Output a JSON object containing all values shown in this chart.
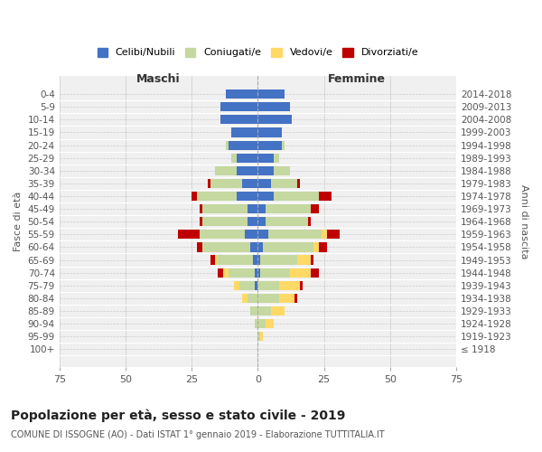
{
  "age_groups": [
    "100+",
    "95-99",
    "90-94",
    "85-89",
    "80-84",
    "75-79",
    "70-74",
    "65-69",
    "60-64",
    "55-59",
    "50-54",
    "45-49",
    "40-44",
    "35-39",
    "30-34",
    "25-29",
    "20-24",
    "15-19",
    "10-14",
    "5-9",
    "0-4"
  ],
  "birth_years": [
    "≤ 1918",
    "1919-1923",
    "1924-1928",
    "1929-1933",
    "1934-1938",
    "1939-1943",
    "1944-1948",
    "1949-1953",
    "1954-1958",
    "1959-1963",
    "1964-1968",
    "1969-1973",
    "1974-1978",
    "1979-1983",
    "1984-1988",
    "1989-1993",
    "1994-1998",
    "1999-2003",
    "2004-2008",
    "2009-2013",
    "2014-2018"
  ],
  "males": {
    "celibi": [
      0,
      0,
      0,
      0,
      0,
      1,
      1,
      2,
      3,
      5,
      4,
      4,
      8,
      6,
      8,
      8,
      11,
      10,
      14,
      14,
      12
    ],
    "coniugati": [
      0,
      0,
      1,
      3,
      4,
      6,
      10,
      13,
      18,
      17,
      17,
      17,
      15,
      12,
      8,
      2,
      1,
      0,
      0,
      0,
      0
    ],
    "vedovi": [
      0,
      0,
      0,
      0,
      2,
      2,
      2,
      1,
      0,
      0,
      0,
      0,
      0,
      0,
      0,
      0,
      0,
      0,
      0,
      0,
      0
    ],
    "divorziati": [
      0,
      0,
      0,
      0,
      0,
      0,
      2,
      2,
      2,
      8,
      1,
      1,
      2,
      1,
      0,
      0,
      0,
      0,
      0,
      0,
      0
    ]
  },
  "females": {
    "nubili": [
      0,
      0,
      0,
      0,
      0,
      0,
      1,
      1,
      2,
      4,
      3,
      3,
      6,
      5,
      6,
      6,
      9,
      9,
      13,
      12,
      10
    ],
    "coniugate": [
      0,
      1,
      3,
      5,
      8,
      8,
      11,
      14,
      19,
      20,
      16,
      17,
      17,
      10,
      6,
      2,
      1,
      0,
      0,
      0,
      0
    ],
    "vedove": [
      0,
      1,
      3,
      5,
      6,
      8,
      8,
      5,
      2,
      2,
      0,
      0,
      0,
      0,
      0,
      0,
      0,
      0,
      0,
      0,
      0
    ],
    "divorziate": [
      0,
      0,
      0,
      0,
      1,
      1,
      3,
      1,
      3,
      5,
      1,
      3,
      5,
      1,
      0,
      0,
      0,
      0,
      0,
      0,
      0
    ]
  },
  "colors": {
    "celibi": "#4472c4",
    "coniugati": "#c5d8a0",
    "vedovi": "#ffd966",
    "divorziati": "#c00000"
  },
  "legend_labels": [
    "Celibi/Nubili",
    "Coniugati/e",
    "Vedovi/e",
    "Divorziati/e"
  ],
  "title": "Popolazione per età, sesso e stato civile - 2019",
  "subtitle": "COMUNE DI ISSOGNE (AO) - Dati ISTAT 1° gennaio 2019 - Elaborazione TUTTITALIA.IT",
  "xlabel_left": "Maschi",
  "xlabel_right": "Femmine",
  "ylabel_left": "Fasce di età",
  "ylabel_right": "Anni di nascita",
  "xlim": 75,
  "bg_color": "#f0f0f0"
}
